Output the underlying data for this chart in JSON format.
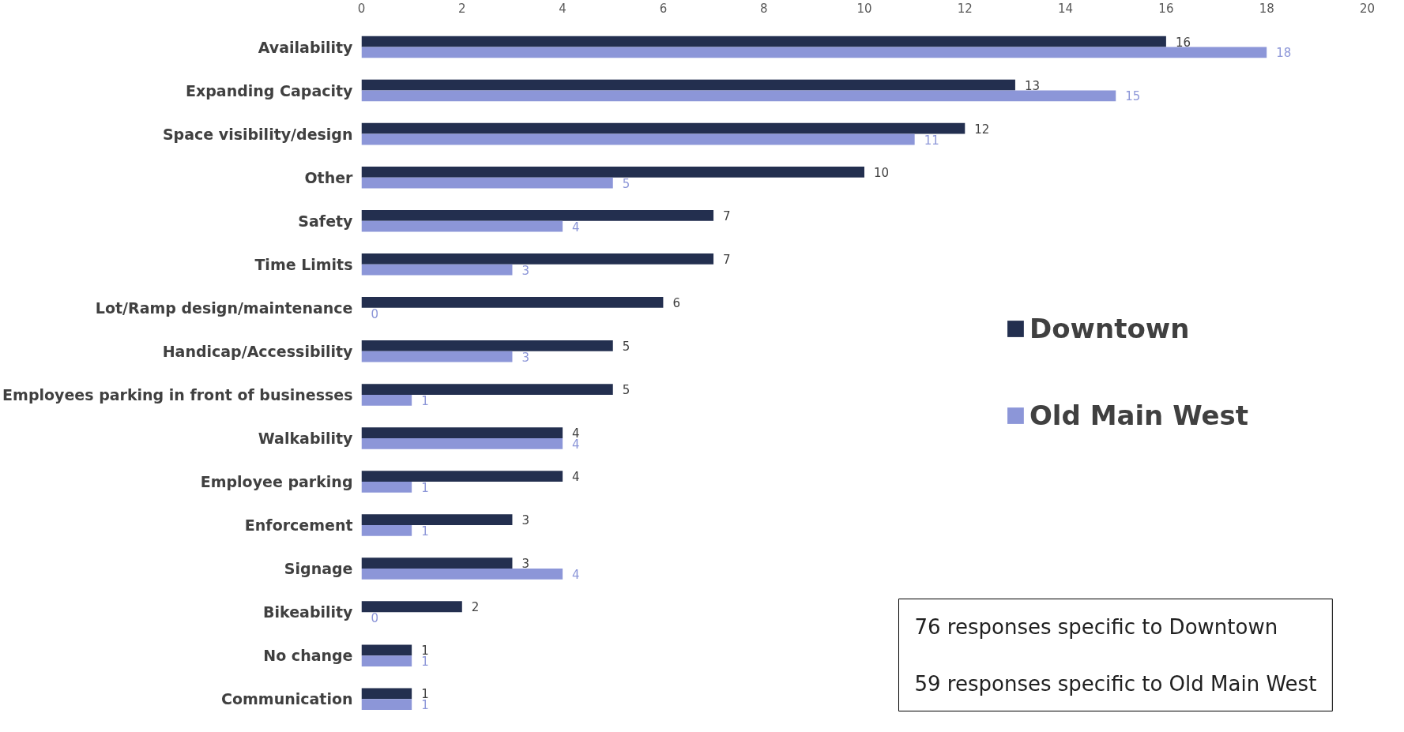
{
  "chart_data": {
    "type": "bar",
    "orientation": "horizontal",
    "categories": [
      "Availability",
      "Expanding Capacity",
      "Space visibility/design",
      "Other",
      "Safety",
      "Time Limits",
      "Lot/Ramp design/maintenance",
      "Handicap/Accessibility",
      "Employees parking in front of businesses",
      "Walkability",
      "Employee parking",
      "Enforcement",
      "Signage",
      "Bikeability",
      "No change",
      "Communication"
    ],
    "series": [
      {
        "name": "Downtown",
        "color": "#232f4f",
        "values": [
          16,
          13,
          12,
          10,
          7,
          7,
          6,
          5,
          5,
          4,
          4,
          3,
          3,
          2,
          1,
          1
        ]
      },
      {
        "name": "Old Main West",
        "color": "#8c96d8",
        "values": [
          18,
          15,
          11,
          5,
          4,
          3,
          0,
          3,
          1,
          4,
          1,
          1,
          4,
          0,
          1,
          1
        ]
      }
    ],
    "xlim": [
      0,
      20
    ],
    "xticks": [
      0,
      2,
      4,
      6,
      8,
      10,
      12,
      14,
      16,
      18,
      20
    ],
    "data_labels": true,
    "grid": false,
    "legend": "right",
    "annotations": [
      "76 responses specific to Downtown",
      "59 responses specific to Old Main West"
    ]
  }
}
